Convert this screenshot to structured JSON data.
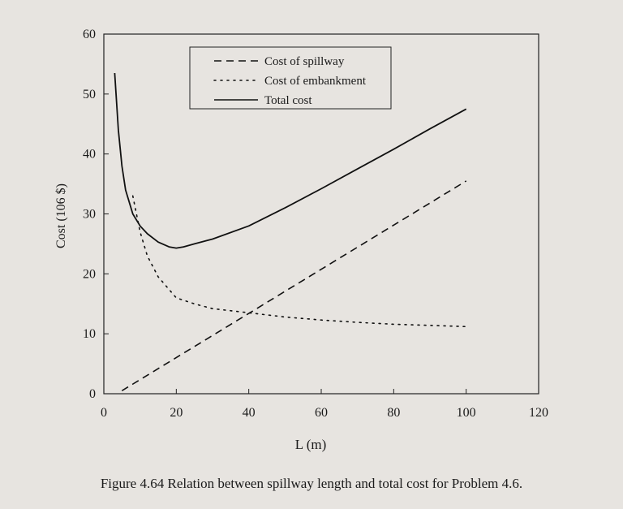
{
  "caption": "Figure 4.64 Relation between spillway length and total cost for Problem 4.6.",
  "chart_data": {
    "type": "line",
    "title": "",
    "xlabel": "L (m)",
    "ylabel": "Cost (106 $)",
    "xlim": [
      0,
      120
    ],
    "ylim": [
      0,
      60
    ],
    "xticks": [
      0,
      20,
      40,
      60,
      80,
      100,
      120
    ],
    "yticks": [
      0,
      10,
      20,
      30,
      40,
      50,
      60
    ],
    "grid": false,
    "legend_position": "top-center",
    "series": [
      {
        "name": "Cost of spillway",
        "style": "dashed",
        "x": [
          5,
          100
        ],
        "y": [
          0.5,
          35.5
        ]
      },
      {
        "name": "Cost of embankment",
        "style": "dotted",
        "x": [
          8,
          10,
          12,
          15,
          20,
          25,
          30,
          40,
          50,
          60,
          70,
          80,
          90,
          100
        ],
        "y": [
          33,
          27,
          23,
          19.5,
          16,
          15,
          14.2,
          13.5,
          12.8,
          12.3,
          11.9,
          11.6,
          11.4,
          11.2
        ]
      },
      {
        "name": "Total cost",
        "style": "solid",
        "x": [
          3,
          4,
          5,
          6,
          8,
          10,
          12,
          15,
          18,
          20,
          22,
          25,
          30,
          40,
          50,
          60,
          70,
          80,
          90,
          100
        ],
        "y": [
          53.5,
          44,
          38,
          34,
          30,
          28,
          26.7,
          25.3,
          24.5,
          24.3,
          24.5,
          25,
          25.8,
          28,
          31,
          34.2,
          37.5,
          40.8,
          44.2,
          47.5
        ]
      }
    ]
  }
}
